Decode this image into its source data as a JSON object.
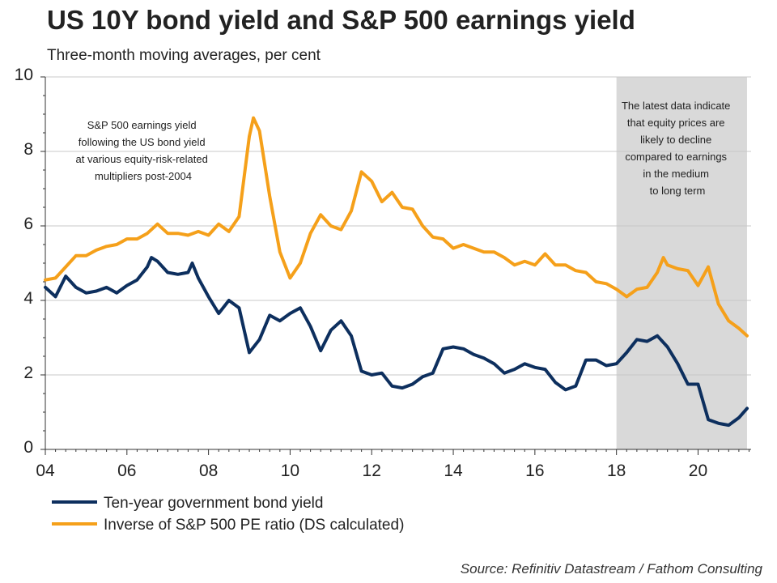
{
  "title": "US 10Y bond yield and S&P 500 earnings yield",
  "subtitle": "Three-month moving averages, per cent",
  "source": "Source: Refinitiv Datastream / Fathom Consulting",
  "chart_data": {
    "type": "line",
    "xlim": [
      2004,
      2021.3
    ],
    "ylim": [
      0,
      10
    ],
    "x_ticks": [
      2004,
      2006,
      2008,
      2010,
      2012,
      2014,
      2016,
      2018,
      2020
    ],
    "x_tick_labels": [
      "04",
      "06",
      "08",
      "10",
      "12",
      "14",
      "16",
      "18",
      "20"
    ],
    "y_ticks": [
      0,
      2,
      4,
      6,
      8,
      10
    ],
    "y_tick_labels": [
      "0",
      "2",
      "4",
      "6",
      "8",
      "10"
    ],
    "grid": true,
    "legend_position": "bottom",
    "shaded_region": {
      "x": [
        2018,
        2021.2
      ],
      "color": "#d9d9d9"
    },
    "annotations": [
      {
        "lines": [
          "S&P 500 earnings yield",
          "following the US bond yield",
          "at various equity-risk-related",
          "multipliers post-2004"
        ]
      },
      {
        "lines": [
          "The latest data indicate",
          "that equity prices are",
          "likely to decline",
          "compared to earnings",
          "in the medium",
          "to long term"
        ]
      }
    ],
    "series": [
      {
        "name": "Ten-year government bond yield",
        "color": "#0d2f5e",
        "points": [
          [
            2004.0,
            4.35
          ],
          [
            2004.25,
            4.1
          ],
          [
            2004.5,
            4.65
          ],
          [
            2004.75,
            4.35
          ],
          [
            2005.0,
            4.2
          ],
          [
            2005.25,
            4.25
          ],
          [
            2005.5,
            4.35
          ],
          [
            2005.75,
            4.2
          ],
          [
            2006.0,
            4.4
          ],
          [
            2006.25,
            4.55
          ],
          [
            2006.5,
            4.9
          ],
          [
            2006.6,
            5.15
          ],
          [
            2006.75,
            5.05
          ],
          [
            2007.0,
            4.75
          ],
          [
            2007.25,
            4.7
          ],
          [
            2007.5,
            4.75
          ],
          [
            2007.6,
            5.0
          ],
          [
            2007.75,
            4.6
          ],
          [
            2008.0,
            4.1
          ],
          [
            2008.25,
            3.65
          ],
          [
            2008.5,
            4.0
          ],
          [
            2008.75,
            3.8
          ],
          [
            2009.0,
            2.6
          ],
          [
            2009.25,
            2.95
          ],
          [
            2009.5,
            3.6
          ],
          [
            2009.75,
            3.45
          ],
          [
            2010.0,
            3.65
          ],
          [
            2010.25,
            3.8
          ],
          [
            2010.5,
            3.3
          ],
          [
            2010.75,
            2.65
          ],
          [
            2011.0,
            3.2
          ],
          [
            2011.25,
            3.45
          ],
          [
            2011.5,
            3.05
          ],
          [
            2011.75,
            2.1
          ],
          [
            2012.0,
            2.0
          ],
          [
            2012.25,
            2.05
          ],
          [
            2012.5,
            1.7
          ],
          [
            2012.75,
            1.65
          ],
          [
            2013.0,
            1.75
          ],
          [
            2013.25,
            1.95
          ],
          [
            2013.5,
            2.05
          ],
          [
            2013.75,
            2.7
          ],
          [
            2014.0,
            2.75
          ],
          [
            2014.25,
            2.7
          ],
          [
            2014.5,
            2.55
          ],
          [
            2014.75,
            2.45
          ],
          [
            2015.0,
            2.3
          ],
          [
            2015.25,
            2.05
          ],
          [
            2015.5,
            2.15
          ],
          [
            2015.75,
            2.3
          ],
          [
            2016.0,
            2.2
          ],
          [
            2016.25,
            2.15
          ],
          [
            2016.5,
            1.8
          ],
          [
            2016.75,
            1.6
          ],
          [
            2017.0,
            1.7
          ],
          [
            2017.25,
            2.4
          ],
          [
            2017.5,
            2.4
          ],
          [
            2017.75,
            2.25
          ],
          [
            2018.0,
            2.3
          ],
          [
            2018.25,
            2.6
          ],
          [
            2018.5,
            2.95
          ],
          [
            2018.75,
            2.9
          ],
          [
            2019.0,
            3.05
          ],
          [
            2019.25,
            2.75
          ],
          [
            2019.5,
            2.3
          ],
          [
            2019.75,
            1.75
          ],
          [
            2020.0,
            1.75
          ],
          [
            2020.25,
            0.8
          ],
          [
            2020.5,
            0.7
          ],
          [
            2020.75,
            0.65
          ],
          [
            2021.0,
            0.85
          ],
          [
            2021.2,
            1.1
          ]
        ]
      },
      {
        "name": "Inverse of S&P 500 PE ratio (DS calculated)",
        "color": "#f5a01a",
        "points": [
          [
            2004.0,
            4.55
          ],
          [
            2004.25,
            4.6
          ],
          [
            2004.5,
            4.9
          ],
          [
            2004.75,
            5.2
          ],
          [
            2005.0,
            5.2
          ],
          [
            2005.25,
            5.35
          ],
          [
            2005.5,
            5.45
          ],
          [
            2005.75,
            5.5
          ],
          [
            2006.0,
            5.65
          ],
          [
            2006.25,
            5.65
          ],
          [
            2006.5,
            5.8
          ],
          [
            2006.75,
            6.05
          ],
          [
            2007.0,
            5.8
          ],
          [
            2007.25,
            5.8
          ],
          [
            2007.5,
            5.75
          ],
          [
            2007.75,
            5.85
          ],
          [
            2008.0,
            5.75
          ],
          [
            2008.25,
            6.05
          ],
          [
            2008.5,
            5.85
          ],
          [
            2008.75,
            6.25
          ],
          [
            2009.0,
            8.4
          ],
          [
            2009.1,
            8.9
          ],
          [
            2009.25,
            8.55
          ],
          [
            2009.5,
            6.8
          ],
          [
            2009.75,
            5.3
          ],
          [
            2010.0,
            4.6
          ],
          [
            2010.25,
            5.0
          ],
          [
            2010.5,
            5.8
          ],
          [
            2010.75,
            6.3
          ],
          [
            2011.0,
            6.0
          ],
          [
            2011.25,
            5.9
          ],
          [
            2011.5,
            6.4
          ],
          [
            2011.75,
            7.45
          ],
          [
            2012.0,
            7.2
          ],
          [
            2012.25,
            6.65
          ],
          [
            2012.5,
            6.9
          ],
          [
            2012.75,
            6.5
          ],
          [
            2013.0,
            6.45
          ],
          [
            2013.25,
            6.0
          ],
          [
            2013.5,
            5.7
          ],
          [
            2013.75,
            5.65
          ],
          [
            2014.0,
            5.4
          ],
          [
            2014.25,
            5.5
          ],
          [
            2014.5,
            5.4
          ],
          [
            2014.75,
            5.3
          ],
          [
            2015.0,
            5.3
          ],
          [
            2015.25,
            5.15
          ],
          [
            2015.5,
            4.95
          ],
          [
            2015.75,
            5.05
          ],
          [
            2016.0,
            4.95
          ],
          [
            2016.25,
            5.25
          ],
          [
            2016.5,
            4.95
          ],
          [
            2016.75,
            4.95
          ],
          [
            2017.0,
            4.8
          ],
          [
            2017.25,
            4.75
          ],
          [
            2017.5,
            4.5
          ],
          [
            2017.75,
            4.45
          ],
          [
            2018.0,
            4.3
          ],
          [
            2018.25,
            4.1
          ],
          [
            2018.5,
            4.3
          ],
          [
            2018.75,
            4.35
          ],
          [
            2019.0,
            4.75
          ],
          [
            2019.15,
            5.15
          ],
          [
            2019.25,
            4.95
          ],
          [
            2019.5,
            4.85
          ],
          [
            2019.75,
            4.8
          ],
          [
            2020.0,
            4.4
          ],
          [
            2020.25,
            4.9
          ],
          [
            2020.5,
            3.9
          ],
          [
            2020.75,
            3.45
          ],
          [
            2021.0,
            3.25
          ],
          [
            2021.2,
            3.05
          ]
        ]
      }
    ]
  }
}
